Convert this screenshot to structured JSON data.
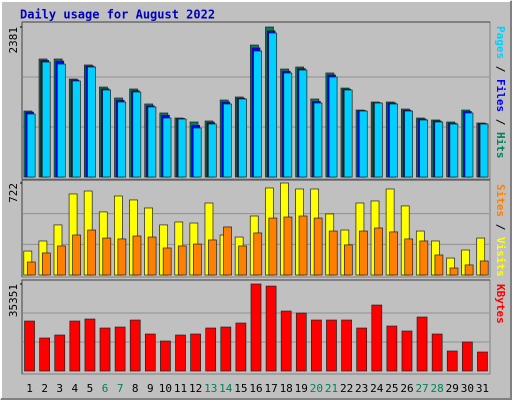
{
  "chart_data": [
    {
      "type": "bar",
      "title": "Daily usage for August 2022",
      "ylim": [
        0,
        2381
      ],
      "yticks": [
        2381
      ],
      "legend_separator": " / ",
      "series": [
        {
          "name": "Hits",
          "color": "#00805c",
          "values": [
            1047,
            1873,
            1873,
            1555,
            1778,
            1428,
            1254,
            1397,
            1159,
            1016,
            936,
            873,
            889,
            1222,
            1270,
            2095,
            2381,
            1714,
            1746,
            1238,
            1651,
            1412,
            1063,
            1190,
            1190,
            1079,
            936,
            905,
            873,
            1063,
            857
          ]
        },
        {
          "name": "Files",
          "color": "#0000ff",
          "values": [
            1030,
            1850,
            1840,
            1540,
            1760,
            1400,
            1220,
            1370,
            1130,
            980,
            930,
            820,
            865,
            1190,
            1250,
            2050,
            2320,
            1680,
            1720,
            1200,
            1620,
            1395,
            1055,
            1180,
            1175,
            1060,
            920,
            890,
            855,
            1040,
            850
          ]
        },
        {
          "name": "Pages",
          "color": "#00d0ff",
          "values": [
            1000,
            1825,
            1793,
            1524,
            1746,
            1381,
            1190,
            1349,
            1111,
            936,
            920,
            778,
            841,
            1159,
            1238,
            2000,
            2285,
            1650,
            1698,
            1174,
            1587,
            1381,
            1047,
            1174,
            1159,
            1047,
            905,
            873,
            841,
            1016,
            841
          ]
        }
      ]
    },
    {
      "type": "bar",
      "ylim": [
        0,
        722
      ],
      "yticks": [
        722
      ],
      "legend_separator": " / ",
      "series": [
        {
          "name": "Visits",
          "color": "#ffff00",
          "values": [
            188,
            267,
            393,
            636,
            659,
            495,
            620,
            589,
            526,
            393,
            416,
            408,
            565,
            314,
            298,
            463,
            683,
            722,
            675,
            675,
            479,
            353,
            565,
            581,
            675,
            542,
            345,
            267,
            133,
            196,
            290
          ]
        },
        {
          "name": "Sites",
          "color": "#ff8000",
          "values": [
            102,
            173,
            228,
            314,
            353,
            290,
            283,
            306,
            298,
            212,
            228,
            243,
            275,
            377,
            228,
            330,
            447,
            455,
            463,
            447,
            345,
            236,
            345,
            369,
            338,
            283,
            267,
            157,
            55,
            79,
            110
          ]
        }
      ]
    },
    {
      "type": "bar",
      "ylim": [
        0,
        35351
      ],
      "yticks": [
        35351
      ],
      "categories": [
        "1",
        "2",
        "3",
        "4",
        "5",
        "6",
        "7",
        "8",
        "9",
        "10",
        "11",
        "12",
        "13",
        "14",
        "15",
        "16",
        "17",
        "18",
        "19",
        "20",
        "21",
        "22",
        "23",
        "24",
        "25",
        "26",
        "27",
        "28",
        "29",
        "30",
        "31"
      ],
      "category_colors": [
        "#000000",
        "#000000",
        "#000000",
        "#000000",
        "#000000",
        "#00805c",
        "#00805c",
        "#000000",
        "#000000",
        "#000000",
        "#000000",
        "#000000",
        "#00805c",
        "#00805c",
        "#000000",
        "#000000",
        "#000000",
        "#000000",
        "#000000",
        "#00805c",
        "#00805c",
        "#000000",
        "#000000",
        "#000000",
        "#000000",
        "#000000",
        "#00805c",
        "#00805c",
        "#000000",
        "#000000",
        "#000000"
      ],
      "series": [
        {
          "name": "KBytes",
          "color": "#ff0000",
          "values": [
            20300,
            13398,
            14616,
            20300,
            21112,
            17458,
            17864,
            20706,
            15022,
            12180,
            14616,
            15022,
            17458,
            17864,
            19488,
            35351,
            34510,
            24360,
            23548,
            20706,
            20706,
            20706,
            17458,
            26796,
            18270,
            16240,
            21924,
            15022,
            8120,
            11774,
            7714
          ]
        }
      ]
    }
  ]
}
